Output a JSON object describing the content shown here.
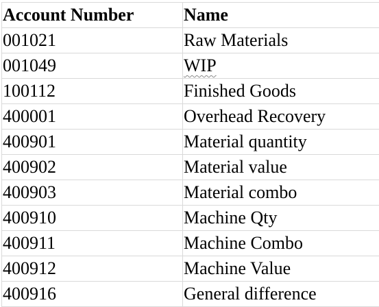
{
  "table": {
    "headers": {
      "account_number": "Account Number",
      "name": "Name"
    },
    "rows": [
      {
        "account_number": "001021",
        "name": "Raw Materials"
      },
      {
        "account_number": "001049",
        "name": "WIP"
      },
      {
        "account_number": "100112",
        "name": "Finished Goods"
      },
      {
        "account_number": "400001",
        "name": "Overhead Recovery"
      },
      {
        "account_number": "400901",
        "name": "Material quantity"
      },
      {
        "account_number": "400902",
        "name": "Material value"
      },
      {
        "account_number": "400903",
        "name": "Material combo"
      },
      {
        "account_number": "400910",
        "name": "Machine Qty"
      },
      {
        "account_number": "400911",
        "name": "Machine Combo"
      },
      {
        "account_number": "400912",
        "name": "Machine Value"
      },
      {
        "account_number": "400916",
        "name": "General difference"
      }
    ]
  },
  "colors": {
    "gridline": "#d9d9d9",
    "text": "#000000",
    "spellcheck_underline": "#8a8a8a"
  }
}
